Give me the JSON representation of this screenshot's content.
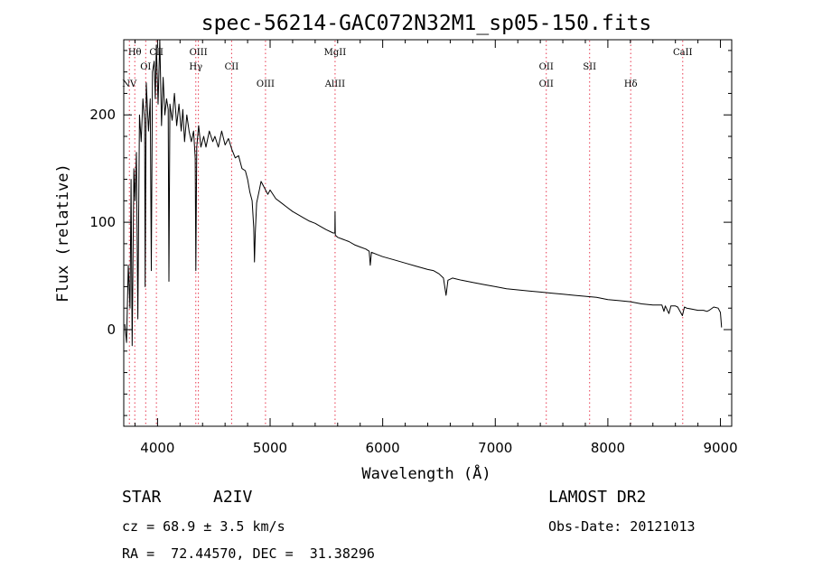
{
  "chart_data": {
    "type": "line",
    "title": "spec-56214-GAC072N32M1_sp05-150.fits",
    "xlabel": "Wavelength (Å)",
    "ylabel": "Flux (relative)",
    "xlim": [
      3700,
      9100
    ],
    "ylim": [
      -90,
      270
    ],
    "x_ticks": [
      4000,
      5000,
      6000,
      7000,
      8000,
      9000
    ],
    "y_ticks": [
      0,
      100,
      200
    ],
    "grid": false,
    "spectrum": [
      [
        3710,
        5
      ],
      [
        3725,
        -12
      ],
      [
        3740,
        60
      ],
      [
        3755,
        20
      ],
      [
        3765,
        140
      ],
      [
        3775,
        -15
      ],
      [
        3790,
        150
      ],
      [
        3800,
        120
      ],
      [
        3812,
        165
      ],
      [
        3825,
        10
      ],
      [
        3840,
        200
      ],
      [
        3855,
        175
      ],
      [
        3870,
        215
      ],
      [
        3885,
        195
      ],
      [
        3890,
        40
      ],
      [
        3900,
        230
      ],
      [
        3920,
        185
      ],
      [
        3935,
        215
      ],
      [
        3945,
        55
      ],
      [
        3955,
        240
      ],
      [
        3970,
        250
      ],
      [
        3980,
        215
      ],
      [
        3990,
        265
      ],
      [
        4005,
        210
      ],
      [
        4020,
        270
      ],
      [
        4035,
        190
      ],
      [
        4050,
        235
      ],
      [
        4065,
        200
      ],
      [
        4080,
        215
      ],
      [
        4095,
        205
      ],
      [
        4101,
        45
      ],
      [
        4110,
        210
      ],
      [
        4130,
        195
      ],
      [
        4150,
        220
      ],
      [
        4170,
        190
      ],
      [
        4190,
        210
      ],
      [
        4210,
        185
      ],
      [
        4225,
        205
      ],
      [
        4240,
        175
      ],
      [
        4260,
        200
      ],
      [
        4280,
        185
      ],
      [
        4300,
        175
      ],
      [
        4320,
        185
      ],
      [
        4335,
        160
      ],
      [
        4340,
        55
      ],
      [
        4348,
        170
      ],
      [
        4365,
        190
      ],
      [
        4385,
        170
      ],
      [
        4410,
        180
      ],
      [
        4430,
        170
      ],
      [
        4460,
        185
      ],
      [
        4490,
        175
      ],
      [
        4510,
        180
      ],
      [
        4540,
        170
      ],
      [
        4570,
        185
      ],
      [
        4600,
        172
      ],
      [
        4630,
        178
      ],
      [
        4660,
        168
      ],
      [
        4690,
        160
      ],
      [
        4720,
        162
      ],
      [
        4750,
        150
      ],
      [
        4780,
        148
      ],
      [
        4800,
        140
      ],
      [
        4820,
        128
      ],
      [
        4840,
        120
      ],
      [
        4855,
        95
      ],
      [
        4861,
        63
      ],
      [
        4868,
        90
      ],
      [
        4880,
        118
      ],
      [
        4900,
        128
      ],
      [
        4920,
        138
      ],
      [
        4950,
        132
      ],
      [
        4980,
        126
      ],
      [
        5000,
        130
      ],
      [
        5050,
        122
      ],
      [
        5100,
        118
      ],
      [
        5150,
        114
      ],
      [
        5200,
        110
      ],
      [
        5250,
        107
      ],
      [
        5300,
        104
      ],
      [
        5350,
        101
      ],
      [
        5400,
        99
      ],
      [
        5450,
        96
      ],
      [
        5500,
        93
      ],
      [
        5560,
        90
      ],
      [
        5575,
        90
      ],
      [
        5577,
        110
      ],
      [
        5579,
        88
      ],
      [
        5600,
        86
      ],
      [
        5650,
        84
      ],
      [
        5700,
        82
      ],
      [
        5750,
        79
      ],
      [
        5800,
        77
      ],
      [
        5850,
        75
      ],
      [
        5880,
        73
      ],
      [
        5890,
        60
      ],
      [
        5900,
        72
      ],
      [
        5950,
        70
      ],
      [
        6000,
        68
      ],
      [
        6100,
        65
      ],
      [
        6200,
        62
      ],
      [
        6300,
        59
      ],
      [
        6400,
        56
      ],
      [
        6450,
        55
      ],
      [
        6500,
        52
      ],
      [
        6540,
        48
      ],
      [
        6563,
        32
      ],
      [
        6580,
        46
      ],
      [
        6620,
        48
      ],
      [
        6700,
        46
      ],
      [
        6800,
        44
      ],
      [
        6900,
        42
      ],
      [
        7000,
        40
      ],
      [
        7100,
        38
      ],
      [
        7200,
        37
      ],
      [
        7300,
        36
      ],
      [
        7400,
        35
      ],
      [
        7500,
        34
      ],
      [
        7600,
        33
      ],
      [
        7700,
        32
      ],
      [
        7800,
        31
      ],
      [
        7900,
        30
      ],
      [
        8000,
        28
      ],
      [
        8100,
        27
      ],
      [
        8200,
        26
      ],
      [
        8300,
        24
      ],
      [
        8400,
        23
      ],
      [
        8480,
        23
      ],
      [
        8498,
        17
      ],
      [
        8510,
        22
      ],
      [
        8542,
        15
      ],
      [
        8560,
        22
      ],
      [
        8600,
        22
      ],
      [
        8620,
        21
      ],
      [
        8662,
        13
      ],
      [
        8680,
        21
      ],
      [
        8700,
        20
      ],
      [
        8750,
        19
      ],
      [
        8800,
        18
      ],
      [
        8850,
        18
      ],
      [
        8880,
        17
      ],
      [
        8900,
        18
      ],
      [
        8940,
        21
      ],
      [
        8980,
        20
      ],
      [
        9000,
        16
      ],
      [
        9010,
        2
      ]
    ],
    "line_markers": [
      {
        "label": "Hθ",
        "wavelength": 3798,
        "row": 1
      },
      {
        "label": "NV",
        "wavelength": 3750,
        "row": 3
      },
      {
        "label": "OI",
        "wavelength": 3895,
        "row": 2
      },
      {
        "label": "CII",
        "wavelength": 3990,
        "row": 1
      },
      {
        "label": "OIII",
        "wavelength": 4363,
        "row": 1
      },
      {
        "label": "Hγ",
        "wavelength": 4340,
        "row": 2
      },
      {
        "label": "CII",
        "wavelength": 4658,
        "row": 2
      },
      {
        "label": "OIII",
        "wavelength": 4959,
        "row": 3
      },
      {
        "label": "MgII",
        "wavelength": 5577,
        "row": 1
      },
      {
        "label": "AlIII",
        "wavelength": 5577,
        "row": 3
      },
      {
        "label": "OII",
        "wavelength": 7453,
        "row": 2
      },
      {
        "label": "OII",
        "wavelength": 7453,
        "row": 3
      },
      {
        "label": "SII",
        "wavelength": 7838,
        "row": 2
      },
      {
        "label": "Hδ",
        "wavelength": 8203,
        "row": 3
      },
      {
        "label": "CaII",
        "wavelength": 8665,
        "row": 1
      }
    ],
    "marker_color": "#e8384f"
  },
  "info": {
    "obj_class": "STAR",
    "subclass": "A2IV",
    "survey": "LAMOST DR2",
    "cz": "cz = 68.9 ± 3.5 km/s",
    "obs_date": "Obs-Date: 20121013",
    "coords": "RA =  72.44570, DEC =  31.38296"
  }
}
